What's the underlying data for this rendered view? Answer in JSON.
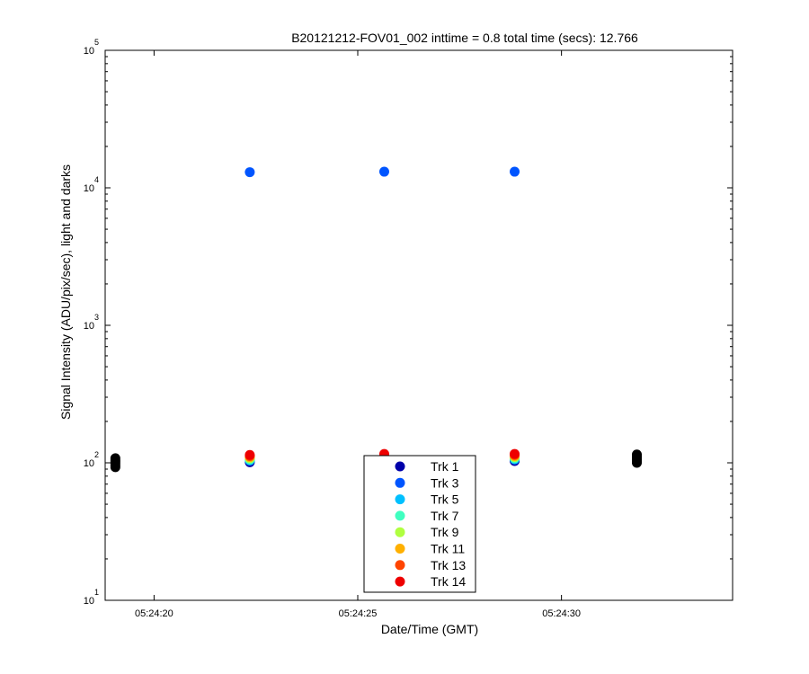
{
  "chart_data": {
    "type": "scatter",
    "title": "B20121212-FOV01_002 inttime = 0.8 total time (secs): 12.766",
    "xlabel": "Date/Time (GMT)",
    "ylabel": "Signal Intensity (ADU/pix/sec), light and darks",
    "yscale": "log",
    "ylim": [
      10,
      100000
    ],
    "xlim": [
      "05:24:18.8",
      "05:24:34.2"
    ],
    "x_ticks": [
      "05:24:20",
      "05:24:25",
      "05:24:30"
    ],
    "y_ticks": [
      {
        "base": "10",
        "exp": "1"
      },
      {
        "base": "10",
        "exp": "2"
      },
      {
        "base": "10",
        "exp": "3"
      },
      {
        "base": "10",
        "exp": "4"
      },
      {
        "base": "10",
        "exp": "5"
      }
    ],
    "grid": false,
    "legend_position": "bottom-center",
    "light_times": [
      "05:24:22.35",
      "05:24:25.65",
      "05:24:28.85"
    ],
    "series": [
      {
        "name": "Trk 1",
        "color": "#0000aa",
        "values": [
          101,
          103,
          103
        ]
      },
      {
        "name": "Trk 3",
        "color": "#0055ff",
        "values": [
          13000,
          13100,
          13100
        ]
      },
      {
        "name": "Trk 5",
        "color": "#00c0ff",
        "values": [
          104,
          106,
          106
        ]
      },
      {
        "name": "Trk 7",
        "color": "#40ffc0",
        "values": [
          106,
          108,
          108
        ]
      },
      {
        "name": "Trk 9",
        "color": "#b0ff40",
        "values": [
          108,
          110,
          110
        ]
      },
      {
        "name": "Trk 11",
        "color": "#ffb000",
        "values": [
          110,
          112,
          112
        ]
      },
      {
        "name": "Trk 13",
        "color": "#ff4500",
        "values": [
          112,
          114,
          114
        ]
      },
      {
        "name": "Trk 14",
        "color": "#ee0000",
        "values": [
          114,
          116,
          116
        ]
      }
    ],
    "darks": {
      "color": "#000000",
      "groups": [
        {
          "x": "05:24:19.05",
          "values": [
            93,
            96,
            99,
            102,
            105,
            108
          ]
        },
        {
          "x": "05:24:31.85",
          "values": [
            100,
            103,
            106,
            109,
            112,
            115
          ]
        }
      ]
    }
  }
}
